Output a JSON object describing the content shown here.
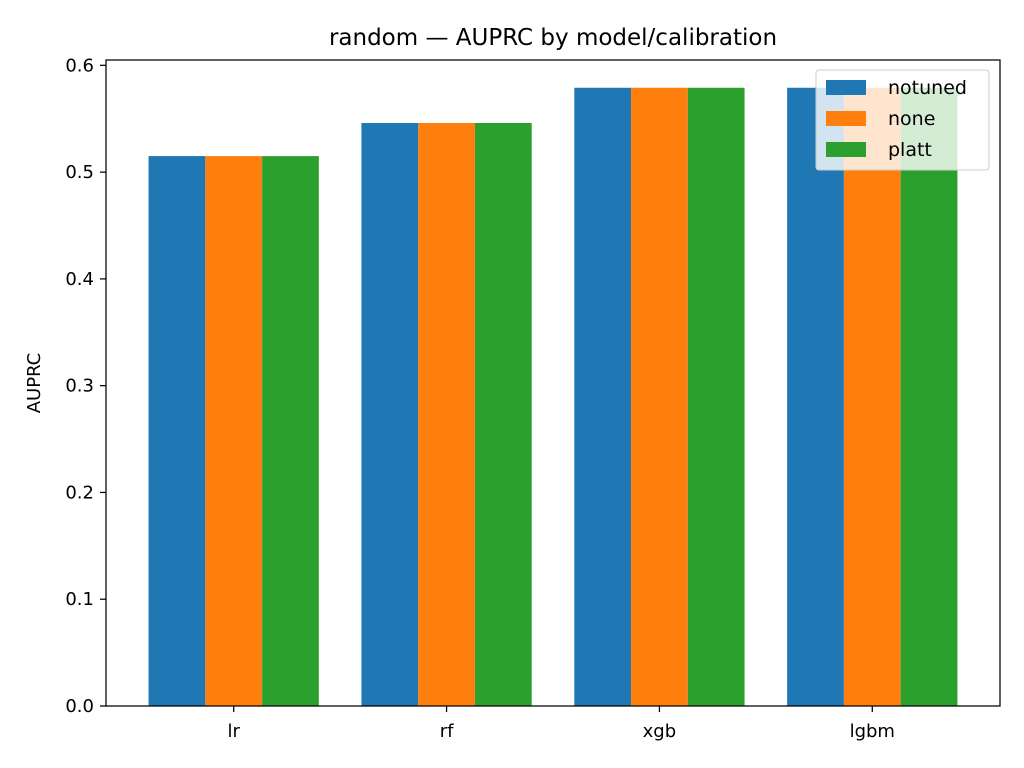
{
  "chart_data": {
    "type": "bar",
    "title": "random — AUPRC by model/calibration",
    "xlabel": "",
    "ylabel": "AUPRC",
    "categories": [
      "lr",
      "rf",
      "xgb",
      "lgbm"
    ],
    "ylim": [
      0,
      0.605
    ],
    "yticks": [
      "0.0",
      "0.1",
      "0.2",
      "0.3",
      "0.4",
      "0.5",
      "0.6"
    ],
    "grid": false,
    "legend_position": "top-right",
    "series": [
      {
        "name": "notuned",
        "color": "#1f77b4",
        "values": [
          0.515,
          0.546,
          0.579,
          0.579
        ]
      },
      {
        "name": "none",
        "color": "#ff7f0e",
        "values": [
          0.515,
          0.546,
          0.579,
          0.579
        ]
      },
      {
        "name": "platt",
        "color": "#2ca02c",
        "values": [
          0.515,
          0.546,
          0.579,
          0.579
        ]
      }
    ]
  }
}
